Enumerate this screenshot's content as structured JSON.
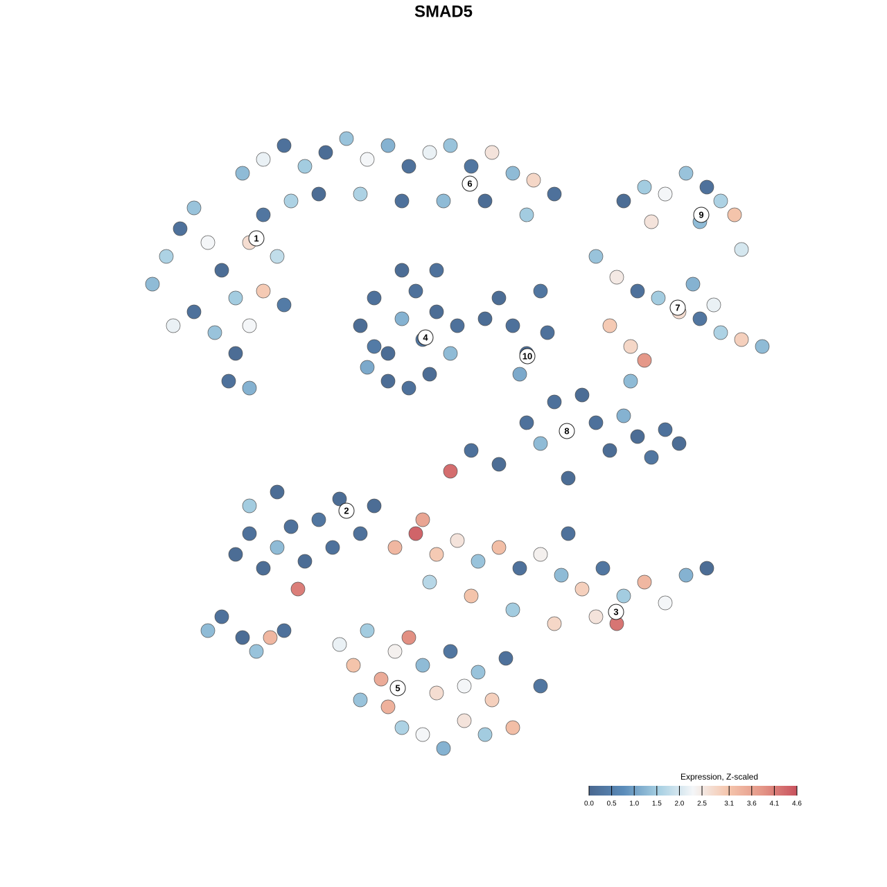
{
  "chart_data": {
    "type": "scatter",
    "title": "SMAD5",
    "xlim": [
      0,
      100
    ],
    "ylim": [
      0,
      100
    ],
    "x": [
      6,
      8,
      10,
      12,
      14,
      16,
      18,
      20,
      22,
      24,
      12,
      15,
      18,
      20,
      22,
      25,
      17,
      20,
      9,
      26,
      19,
      22,
      25,
      28,
      31,
      34,
      37,
      40,
      43,
      46,
      49,
      52,
      55,
      58,
      61,
      64,
      30,
      36,
      42,
      48,
      54,
      60,
      36,
      38,
      40,
      42,
      44,
      45,
      47,
      49,
      40,
      43,
      46,
      38,
      50,
      42,
      37,
      47,
      56,
      58,
      60,
      62,
      59,
      63,
      54,
      74,
      77,
      80,
      83,
      86,
      88,
      90,
      85,
      78,
      91,
      70,
      73,
      76,
      79,
      82,
      85,
      88,
      91,
      94,
      87,
      72,
      75,
      77,
      84,
      68,
      70,
      72,
      74,
      76,
      78,
      80,
      82,
      60,
      62,
      56,
      52,
      66,
      75,
      49,
      64,
      18,
      20,
      22,
      24,
      26,
      28,
      30,
      33,
      36,
      24,
      20,
      27,
      32,
      38,
      41,
      44,
      47,
      50,
      53,
      56,
      59,
      62,
      65,
      68,
      71,
      74,
      77,
      80,
      83,
      86,
      73,
      70,
      46,
      52,
      58,
      64,
      66,
      45,
      33,
      35,
      37,
      39,
      41,
      43,
      45,
      47,
      49,
      51,
      53,
      55,
      57,
      40,
      42,
      45,
      48,
      51,
      54,
      58,
      36,
      62,
      14,
      16,
      19,
      21,
      23,
      25
    ],
    "y": [
      72,
      76,
      80,
      83,
      78,
      74,
      70,
      78,
      82,
      76,
      68,
      65,
      62,
      66,
      71,
      69,
      58,
      57,
      66,
      84,
      88,
      90,
      92,
      89,
      91,
      93,
      90,
      92,
      89,
      91,
      92,
      89,
      91,
      88,
      87,
      85,
      85,
      85,
      84,
      84,
      84,
      82,
      66,
      70,
      62,
      67,
      71,
      64,
      68,
      62,
      58,
      57,
      59,
      63,
      66,
      74,
      60,
      74,
      70,
      66,
      62,
      71,
      59,
      65,
      67,
      84,
      86,
      85,
      88,
      86,
      84,
      82,
      81,
      81,
      77,
      76,
      73,
      71,
      70,
      68,
      67,
      65,
      64,
      63,
      69,
      66,
      63,
      61,
      72,
      56,
      52,
      48,
      53,
      50,
      47,
      51,
      49,
      52,
      49,
      46,
      48,
      44,
      58,
      45,
      55,
      33,
      36,
      31,
      34,
      37,
      32,
      38,
      41,
      36,
      42,
      40,
      28,
      34,
      40,
      34,
      36,
      33,
      35,
      32,
      34,
      31,
      33,
      30,
      28,
      31,
      27,
      29,
      26,
      30,
      31,
      23,
      24,
      29,
      27,
      25,
      23,
      36,
      38,
      20,
      17,
      22,
      15,
      19,
      21,
      17,
      13,
      19,
      14,
      16,
      12,
      18,
      11,
      8,
      7,
      5,
      9,
      7,
      8,
      12,
      14,
      22,
      24,
      21,
      19,
      21,
      22
    ],
    "values": [
      1.3,
      1.6,
      0.2,
      1.4,
      2.3,
      0.1,
      1.5,
      2.7,
      0.3,
      1.8,
      0.2,
      1.4,
      0.1,
      2.3,
      3.0,
      0.4,
      0.2,
      1.2,
      2.2,
      1.6,
      1.3,
      2.2,
      0.2,
      1.5,
      0.1,
      1.4,
      2.3,
      1.2,
      0.2,
      2.2,
      1.4,
      0.3,
      2.6,
      1.3,
      2.8,
      0.2,
      0.1,
      1.6,
      0.2,
      1.3,
      0.1,
      1.5,
      0.1,
      0.2,
      0.1,
      1.2,
      0.2,
      0.3,
      0.1,
      1.3,
      0.1,
      0.2,
      0.1,
      0.4,
      0.2,
      0.1,
      1.1,
      0.2,
      0.1,
      0.2,
      0.1,
      0.3,
      1.1,
      0.2,
      0.1,
      0.1,
      1.5,
      2.3,
      1.4,
      0.2,
      1.6,
      3.1,
      1.3,
      2.6,
      2.0,
      1.4,
      2.5,
      0.2,
      1.5,
      2.7,
      0.3,
      1.6,
      2.9,
      1.3,
      2.2,
      3.0,
      2.8,
      3.8,
      1.2,
      0.1,
      0.2,
      0.1,
      1.2,
      0.1,
      0.3,
      0.2,
      0.1,
      0.2,
      1.3,
      0.1,
      0.2,
      0.1,
      1.3,
      4.3,
      0.2,
      0.1,
      0.2,
      0.1,
      1.3,
      0.2,
      0.1,
      0.3,
      0.1,
      0.2,
      0.1,
      1.5,
      4.1,
      0.2,
      0.1,
      3.3,
      4.4,
      3.0,
      2.6,
      1.4,
      3.2,
      0.2,
      2.4,
      1.3,
      2.9,
      0.3,
      1.5,
      3.3,
      2.3,
      1.2,
      0.1,
      4.2,
      2.6,
      1.7,
      3.1,
      1.5,
      2.8,
      0.2,
      3.6,
      2.2,
      3.1,
      1.5,
      3.5,
      2.4,
      3.9,
      1.3,
      2.7,
      0.3,
      2.3,
      1.4,
      2.9,
      0.2,
      3.4,
      1.6,
      2.3,
      1.2,
      2.6,
      1.5,
      3.2,
      1.4,
      0.3,
      1.3,
      0.2,
      0.1,
      1.4,
      3.3,
      0.2
    ],
    "colormap": [
      "#4a6890",
      "#5b8cba",
      "#a6cfe2",
      "#f4f6f8",
      "#f5c6ad",
      "#e49687",
      "#c9525e"
    ],
    "cluster_labels": {
      "labels": [
        "1",
        "2",
        "3",
        "4",
        "5",
        "6",
        "7",
        "8",
        "9",
        "10"
      ],
      "x": [
        21,
        34,
        72.9,
        45.4,
        41.4,
        51.8,
        81.8,
        65.8,
        85.2,
        60.1
      ],
      "y": [
        78.6,
        39.3,
        24.7,
        64.3,
        13.7,
        86.5,
        68.6,
        50.8,
        82,
        61.6
      ]
    },
    "colorbar": {
      "title": "Expression, Z-scaled",
      "clim": [
        0,
        4.6
      ],
      "ticks": [
        {
          "value": 0,
          "label": "0.0"
        },
        0.5,
        {
          "value": 1,
          "label": "1.0"
        },
        1.5,
        {
          "value": 2,
          "label": "2.0"
        },
        2.5,
        3.1,
        3.6,
        4.1,
        4.6
      ]
    }
  }
}
